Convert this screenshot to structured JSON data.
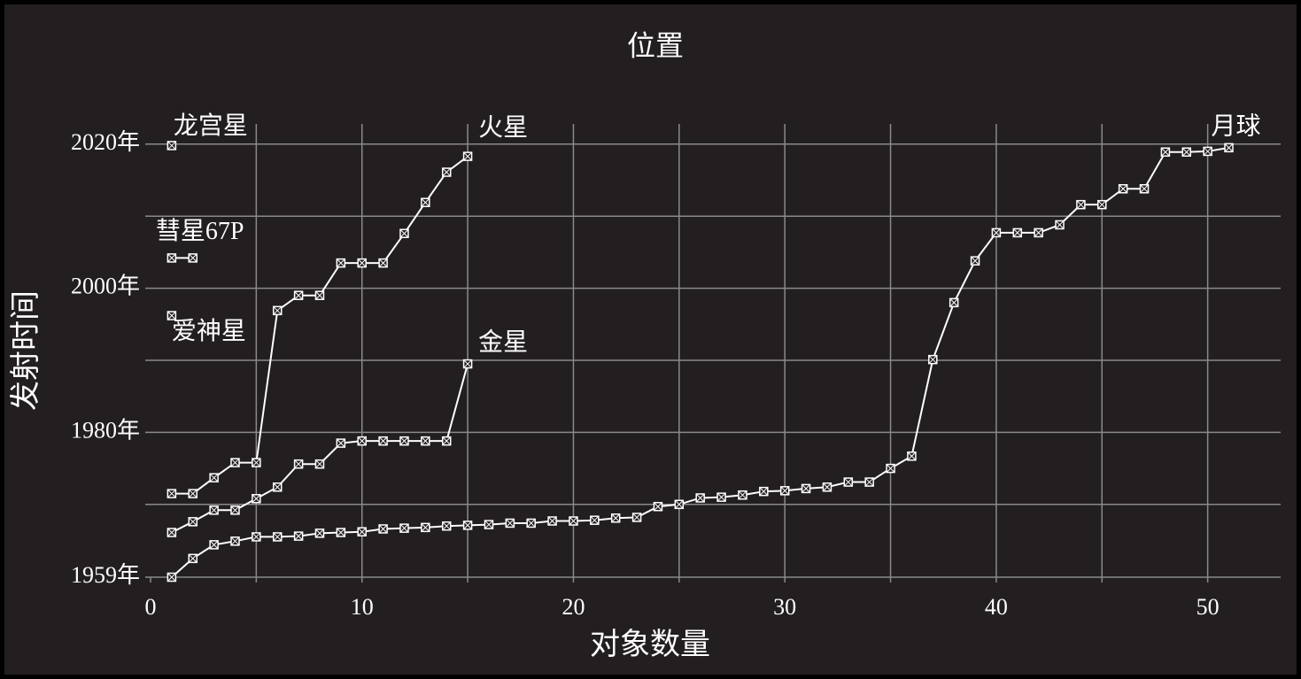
{
  "chart_data": {
    "type": "line",
    "title": "位置",
    "x_label": "对象数量",
    "y_label": "发射时间",
    "xlim": [
      0,
      53.45
    ],
    "ylim": [
      1959.9,
      2022.8
    ],
    "xticks": [
      0,
      {
        "value": 5,
        "label": null
      },
      10,
      {
        "value": 15,
        "label": null
      },
      20,
      {
        "value": 25,
        "label": null
      },
      30,
      {
        "value": 35,
        "label": null
      },
      40,
      {
        "value": 45,
        "label": null
      },
      50
    ],
    "yticks": [
      {
        "value": 1959.9,
        "label": "1959年"
      },
      {
        "value": 1970,
        "label": null
      },
      {
        "value": 1980,
        "label": "1980年"
      },
      {
        "value": 1990,
        "label": null
      },
      {
        "value": 2000,
        "label": "2000年"
      },
      {
        "value": 2010,
        "label": null
      },
      {
        "value": 2020,
        "label": "2020年"
      }
    ],
    "grid": true,
    "series": [
      {
        "name": "月球",
        "color": "#ffffff",
        "x": [
          1,
          2,
          3,
          4,
          5,
          6,
          7,
          8,
          9,
          10,
          11,
          12,
          13,
          14,
          15,
          16,
          17,
          18,
          19,
          20,
          21,
          22,
          23,
          24,
          25,
          26,
          27,
          28,
          29,
          30,
          31,
          32,
          33,
          34,
          35,
          36,
          37,
          38,
          39,
          40,
          41,
          42,
          43,
          44,
          45,
          46,
          47,
          48,
          49,
          50,
          51
        ],
        "values": [
          1959.9,
          1962.5,
          1964.4,
          1964.9,
          1965.5,
          1965.5,
          1965.6,
          1966,
          1966.1,
          1966.2,
          1966.6,
          1966.7,
          1966.8,
          1967,
          1967.1,
          1967.2,
          1967.4,
          1967.4,
          1967.7,
          1967.7,
          1967.8,
          1968.1,
          1968.2,
          1969.7,
          1970,
          1970.9,
          1971,
          1971.3,
          1971.8,
          1971.9,
          1972.2,
          1972.4,
          1973.1,
          1973.1,
          1975,
          1976.7,
          1990.1,
          1998,
          2003.8,
          2007.7,
          2007.7,
          2007.7,
          2008.8,
          2011.6,
          2011.6,
          2013.8,
          2013.8,
          2018.9,
          2018.9,
          2019,
          2019.5
        ]
      },
      {
        "name": "火星",
        "color": "#ffffff",
        "x": [
          1,
          2,
          3,
          4,
          5,
          6,
          7,
          8,
          9,
          10,
          11,
          12,
          13,
          14,
          15
        ],
        "values": [
          1971.5,
          1971.5,
          1973.7,
          1975.8,
          1975.8,
          1996.9,
          1999,
          1999,
          2003.5,
          2003.5,
          2003.5,
          2007.6,
          2011.9,
          2016.1,
          2018.3
        ]
      },
      {
        "name": "金星",
        "color": "#ffffff",
        "x": [
          1,
          2,
          3,
          4,
          5,
          6,
          7,
          8,
          9,
          10,
          11,
          12,
          13,
          14,
          15
        ],
        "values": [
          1966.1,
          1967.6,
          1969.2,
          1969.2,
          1970.8,
          1972.4,
          1975.6,
          1975.6,
          1978.5,
          1978.8,
          1978.8,
          1978.8,
          1978.8,
          1978.8,
          1989.5
        ]
      },
      {
        "name": "龙宫星",
        "color": "#ffffff",
        "x": [
          1
        ],
        "values": [
          2019.8
        ]
      },
      {
        "name": "彗星67P",
        "color": "#ffffff",
        "x": [
          1,
          2
        ],
        "values": [
          2004.2,
          2004.2
        ]
      },
      {
        "name": "爱神星",
        "color": "#ffffff",
        "x": [
          1
        ],
        "values": [
          1996.2
        ]
      }
    ]
  }
}
